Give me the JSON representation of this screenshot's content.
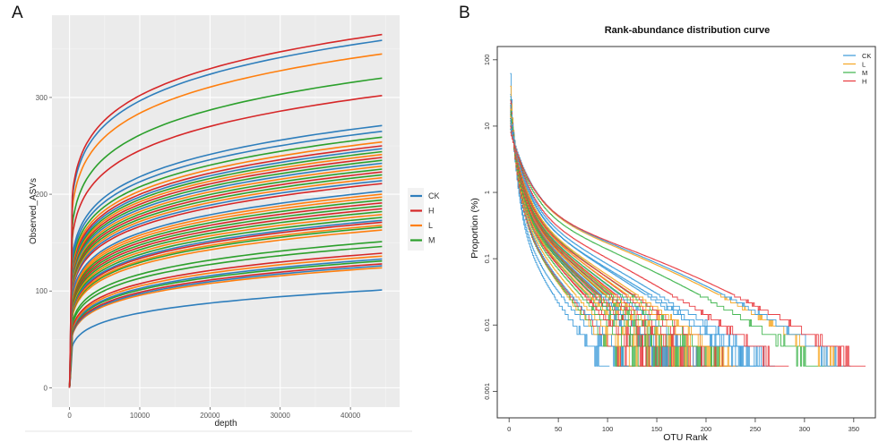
{
  "figure": {
    "panel_a_label": "A",
    "panel_b_label": "B"
  },
  "chart_data": [
    {
      "type": "line",
      "panel": "A",
      "title": "",
      "xlabel": "depth",
      "ylabel": "Observed_ASVs",
      "xlim": [
        -2500,
        47000
      ],
      "ylim": [
        -20,
        385
      ],
      "x_ticks": [
        0,
        10000,
        20000,
        30000,
        40000
      ],
      "x_tick_labels": [
        "0",
        "10000",
        "20000",
        "30000",
        "40000"
      ],
      "y_ticks": [
        0,
        100,
        200,
        300
      ],
      "y_tick_labels": [
        "0",
        "100",
        "200",
        "300"
      ],
      "grid": true,
      "legend": {
        "placement": "right",
        "entries": [
          {
            "name": "CK",
            "color": "#2e7ebc"
          },
          {
            "name": "H",
            "color": "#d62728"
          },
          {
            "name": "L",
            "color": "#ff7f0e"
          },
          {
            "name": "M",
            "color": "#2ca02c"
          }
        ]
      },
      "x_end": 44500,
      "description": "Rarefaction curves; each series rises steeply then plateaus. Final values at depth ~44500 listed per sample.",
      "series": [
        {
          "group": "H",
          "final": 365
        },
        {
          "group": "CK",
          "final": 359
        },
        {
          "group": "L",
          "final": 345
        },
        {
          "group": "M",
          "final": 320
        },
        {
          "group": "H",
          "final": 302
        },
        {
          "group": "CK",
          "final": 271
        },
        {
          "group": "CK",
          "final": 265
        },
        {
          "group": "M",
          "final": 259
        },
        {
          "group": "L",
          "final": 254
        },
        {
          "group": "H",
          "final": 250
        },
        {
          "group": "CK",
          "final": 247
        },
        {
          "group": "M",
          "final": 244
        },
        {
          "group": "L",
          "final": 241
        },
        {
          "group": "H",
          "final": 238
        },
        {
          "group": "M",
          "final": 235
        },
        {
          "group": "CK",
          "final": 232
        },
        {
          "group": "L",
          "final": 229
        },
        {
          "group": "M",
          "final": 226
        },
        {
          "group": "H",
          "final": 223
        },
        {
          "group": "M",
          "final": 220
        },
        {
          "group": "L",
          "final": 217
        },
        {
          "group": "CK",
          "final": 214
        },
        {
          "group": "H",
          "final": 211
        },
        {
          "group": "CK",
          "final": 203
        },
        {
          "group": "L",
          "final": 200
        },
        {
          "group": "L",
          "final": 197
        },
        {
          "group": "M",
          "final": 194
        },
        {
          "group": "H",
          "final": 191
        },
        {
          "group": "M",
          "final": 188
        },
        {
          "group": "H",
          "final": 185
        },
        {
          "group": "M",
          "final": 182
        },
        {
          "group": "L",
          "final": 179
        },
        {
          "group": "M",
          "final": 176
        },
        {
          "group": "CK",
          "final": 173
        },
        {
          "group": "H",
          "final": 171
        },
        {
          "group": "L",
          "final": 168
        },
        {
          "group": "M",
          "final": 166
        },
        {
          "group": "L",
          "final": 163
        },
        {
          "group": "M",
          "final": 151
        },
        {
          "group": "M",
          "final": 146
        },
        {
          "group": "H",
          "final": 139
        },
        {
          "group": "L",
          "final": 136
        },
        {
          "group": "CK",
          "final": 133
        },
        {
          "group": "M",
          "final": 131
        },
        {
          "group": "H",
          "final": 128
        },
        {
          "group": "CK",
          "final": 126
        },
        {
          "group": "L",
          "final": 124
        },
        {
          "group": "CK",
          "final": 101
        }
      ]
    },
    {
      "type": "line",
      "panel": "B",
      "title": "Rank-abundance distribution curve",
      "xlabel": "OTU Rank",
      "ylabel": "Proportion (%)",
      "xlim": [
        -12,
        372
      ],
      "ylim_log10": [
        -3.4,
        2.2
      ],
      "y_scale": "log",
      "x_ticks": [
        0,
        50,
        100,
        150,
        200,
        250,
        300,
        350
      ],
      "x_tick_labels": [
        "0",
        "50",
        "100",
        "150",
        "200",
        "250",
        "300",
        "350"
      ],
      "y_ticks": [
        100,
        10,
        1,
        0.1,
        0.01,
        0.001
      ],
      "y_tick_labels": [
        "100",
        "10",
        "1",
        "0.1",
        "0.01",
        "0.001"
      ],
      "grid": false,
      "legend": {
        "placement": "top-right",
        "entries": [
          {
            "name": "CK",
            "color": "#3a9ad9"
          },
          {
            "name": "L",
            "color": "#f5a623"
          },
          {
            "name": "M",
            "color": "#3cb44b"
          },
          {
            "name": "H",
            "color": "#e8383d"
          }
        ]
      },
      "min_proportion": 0.0024,
      "description": "Step curves of per-sample relative abundance vs rank; each series starts near 20-60% at rank 1 and ends at ~0.0024% at its maximum rank.",
      "series": [
        {
          "group": "CK",
          "start": 62,
          "max_rank": 100,
          "shape": 0.55
        },
        {
          "group": "CK",
          "start": 30,
          "max_rank": 118,
          "shape": 0.6
        },
        {
          "group": "L",
          "start": 40,
          "max_rank": 120,
          "shape": 0.65
        },
        {
          "group": "M",
          "start": 25,
          "max_rank": 122,
          "shape": 0.7
        },
        {
          "group": "H",
          "start": 22,
          "max_rank": 125,
          "shape": 0.72
        },
        {
          "group": "CK",
          "start": 28,
          "max_rank": 130,
          "shape": 0.68
        },
        {
          "group": "L",
          "start": 20,
          "max_rank": 135,
          "shape": 0.75
        },
        {
          "group": "M",
          "start": 18,
          "max_rank": 140,
          "shape": 0.8
        },
        {
          "group": "H",
          "start": 24,
          "max_rank": 145,
          "shape": 0.78
        },
        {
          "group": "H",
          "start": 16,
          "max_rank": 148,
          "shape": 0.82
        },
        {
          "group": "M",
          "start": 20,
          "max_rank": 152,
          "shape": 0.8
        },
        {
          "group": "L",
          "start": 15,
          "max_rank": 155,
          "shape": 0.84
        },
        {
          "group": "H",
          "start": 19,
          "max_rank": 158,
          "shape": 0.83
        },
        {
          "group": "CK",
          "start": 21,
          "max_rank": 160,
          "shape": 0.82
        },
        {
          "group": "M",
          "start": 14,
          "max_rank": 162,
          "shape": 0.86
        },
        {
          "group": "H",
          "start": 17,
          "max_rank": 165,
          "shape": 0.85
        },
        {
          "group": "L",
          "start": 18,
          "max_rank": 168,
          "shape": 0.85
        },
        {
          "group": "M",
          "start": 13,
          "max_rank": 170,
          "shape": 0.88
        },
        {
          "group": "H",
          "start": 15,
          "max_rank": 172,
          "shape": 0.87
        },
        {
          "group": "CK",
          "start": 16,
          "max_rank": 175,
          "shape": 0.86
        },
        {
          "group": "M",
          "start": 17,
          "max_rank": 178,
          "shape": 0.87
        },
        {
          "group": "H",
          "start": 14,
          "max_rank": 180,
          "shape": 0.9
        },
        {
          "group": "L",
          "start": 13,
          "max_rank": 183,
          "shape": 0.9
        },
        {
          "group": "M",
          "start": 15,
          "max_rank": 186,
          "shape": 0.89
        },
        {
          "group": "H",
          "start": 12,
          "max_rank": 190,
          "shape": 0.92
        },
        {
          "group": "M",
          "start": 13,
          "max_rank": 193,
          "shape": 0.92
        },
        {
          "group": "L",
          "start": 14,
          "max_rank": 196,
          "shape": 0.91
        },
        {
          "group": "H",
          "start": 12,
          "max_rank": 200,
          "shape": 0.93
        },
        {
          "group": "CK",
          "start": 13,
          "max_rank": 205,
          "shape": 0.93
        },
        {
          "group": "M",
          "start": 11,
          "max_rank": 210,
          "shape": 0.94
        },
        {
          "group": "H",
          "start": 12,
          "max_rank": 215,
          "shape": 0.95
        },
        {
          "group": "L",
          "start": 11,
          "max_rank": 220,
          "shape": 0.95
        },
        {
          "group": "M",
          "start": 12,
          "max_rank": 225,
          "shape": 0.96
        },
        {
          "group": "H",
          "start": 10,
          "max_rank": 230,
          "shape": 0.97
        },
        {
          "group": "L",
          "start": 11,
          "max_rank": 235,
          "shape": 0.97
        },
        {
          "group": "CK",
          "start": 12,
          "max_rank": 248,
          "shape": 0.98
        },
        {
          "group": "CK",
          "start": 10,
          "max_rank": 258,
          "shape": 1.0
        },
        {
          "group": "CK",
          "start": 11,
          "max_rank": 268,
          "shape": 1.02
        },
        {
          "group": "H",
          "start": 10,
          "max_rank": 282,
          "shape": 1.1
        },
        {
          "group": "M",
          "start": 9,
          "max_rank": 318,
          "shape": 1.2
        },
        {
          "group": "L",
          "start": 9,
          "max_rank": 340,
          "shape": 1.28
        },
        {
          "group": "CK",
          "start": 9,
          "max_rank": 345,
          "shape": 1.3
        },
        {
          "group": "H",
          "start": 8,
          "max_rank": 360,
          "shape": 1.34
        }
      ]
    }
  ]
}
